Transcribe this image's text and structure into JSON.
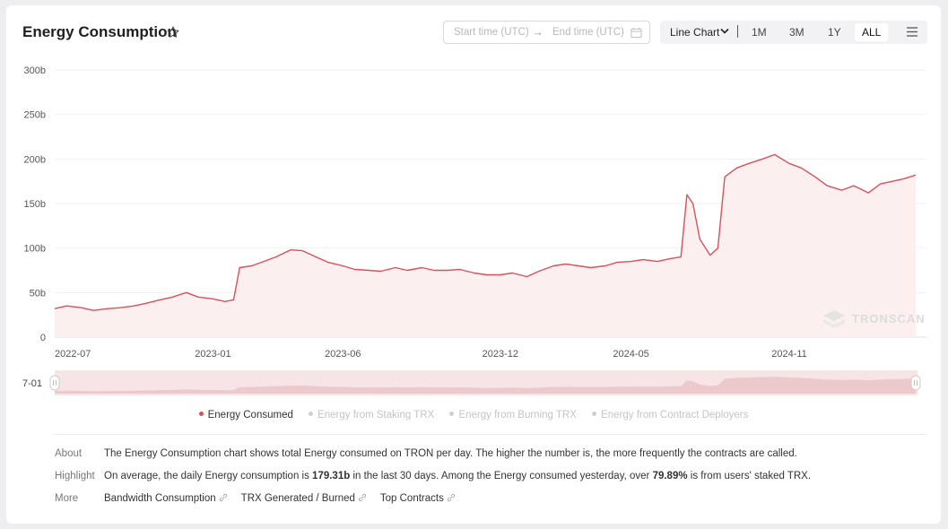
{
  "header": {
    "title": "Energy Consumption",
    "start_placeholder": "Start time (UTC)",
    "end_placeholder": "End time (UTC)",
    "chart_type": "Line Chart",
    "ranges": [
      "1M",
      "3M",
      "1Y",
      "ALL"
    ],
    "active_range": "ALL"
  },
  "watermark": "TRONSCAN",
  "slider_label": "7-01",
  "legend": {
    "items": [
      {
        "name": "Energy Consumed",
        "active": true
      },
      {
        "name": "Energy from Staking TRX",
        "active": false
      },
      {
        "name": "Energy from Burning TRX",
        "active": false
      },
      {
        "name": "Energy from Contract Deployers",
        "active": false
      }
    ]
  },
  "info": {
    "about_label": "About",
    "about_text": "The Energy Consumption chart shows total Energy consumed on TRON per day. The higher the number is, the more frequently the contracts are called.",
    "highlight_label": "Highlight",
    "highlight_pre": "On average, the daily Energy consumption is ",
    "highlight_value1": "179.31b",
    "highlight_mid": " in the last 30 days.  Among the Energy consumed yesterday, over ",
    "highlight_value2": "79.89%",
    "highlight_post": " is from users' staked TRX.",
    "more_label": "More",
    "more_links": [
      "Bandwidth Consumption",
      "TRX Generated / Burned",
      "Top Contracts"
    ]
  },
  "colors": {
    "line": "#d9505a",
    "area": "#fbeff0",
    "accent": "#e0434f"
  },
  "chart_data": {
    "type": "line",
    "title": "Energy Consumption",
    "ylim": [
      0,
      300
    ],
    "y_ticks": [
      0,
      50,
      100,
      150,
      200,
      250,
      300
    ],
    "y_tick_labels": [
      "0",
      "50b",
      "100b",
      "150b",
      "200b",
      "250b",
      "300b"
    ],
    "x_ticks": [
      "2022-07",
      "2023-01",
      "2023-06",
      "2023-12",
      "2024-05",
      "2024-11"
    ],
    "x_ticks_pos": [
      "2022-07-01",
      "2023-01-01",
      "2023-06-01",
      "2023-12-01",
      "2024-05-01",
      "2024-11-01"
    ],
    "x_start": "2022-07-01",
    "x_end": "2025-03-28",
    "grid": true,
    "series": [
      {
        "name": "Energy Consumed",
        "points": [
          [
            "2022-07-01",
            32
          ],
          [
            "2022-07-15",
            35
          ],
          [
            "2022-08-01",
            33
          ],
          [
            "2022-08-15",
            30
          ],
          [
            "2022-09-01",
            32
          ],
          [
            "2022-09-15",
            33
          ],
          [
            "2022-10-01",
            35
          ],
          [
            "2022-10-15",
            38
          ],
          [
            "2022-11-01",
            42
          ],
          [
            "2022-11-15",
            45
          ],
          [
            "2022-12-01",
            50
          ],
          [
            "2022-12-15",
            45
          ],
          [
            "2023-01-01",
            43
          ],
          [
            "2023-01-15",
            40
          ],
          [
            "2023-01-25",
            42
          ],
          [
            "2023-02-01",
            78
          ],
          [
            "2023-02-15",
            80
          ],
          [
            "2023-03-01",
            85
          ],
          [
            "2023-03-15",
            90
          ],
          [
            "2023-04-01",
            98
          ],
          [
            "2023-04-15",
            97
          ],
          [
            "2023-05-01",
            90
          ],
          [
            "2023-05-15",
            84
          ],
          [
            "2023-06-01",
            80
          ],
          [
            "2023-06-15",
            76
          ],
          [
            "2023-07-01",
            75
          ],
          [
            "2023-07-15",
            74
          ],
          [
            "2023-08-01",
            78
          ],
          [
            "2023-08-15",
            75
          ],
          [
            "2023-09-01",
            78
          ],
          [
            "2023-09-15",
            75
          ],
          [
            "2023-10-01",
            75
          ],
          [
            "2023-10-15",
            76
          ],
          [
            "2023-11-01",
            72
          ],
          [
            "2023-11-15",
            70
          ],
          [
            "2023-12-01",
            70
          ],
          [
            "2023-12-15",
            72
          ],
          [
            "2024-01-01",
            68
          ],
          [
            "2024-01-15",
            74
          ],
          [
            "2024-02-01",
            80
          ],
          [
            "2024-02-15",
            82
          ],
          [
            "2024-03-01",
            80
          ],
          [
            "2024-03-15",
            78
          ],
          [
            "2024-04-01",
            80
          ],
          [
            "2024-04-15",
            84
          ],
          [
            "2024-05-01",
            85
          ],
          [
            "2024-05-15",
            87
          ],
          [
            "2024-06-01",
            85
          ],
          [
            "2024-06-15",
            88
          ],
          [
            "2024-06-28",
            90
          ],
          [
            "2024-07-05",
            160
          ],
          [
            "2024-07-12",
            150
          ],
          [
            "2024-07-20",
            110
          ],
          [
            "2024-08-01",
            92
          ],
          [
            "2024-08-10",
            100
          ],
          [
            "2024-08-18",
            180
          ],
          [
            "2024-09-01",
            190
          ],
          [
            "2024-09-15",
            195
          ],
          [
            "2024-10-01",
            200
          ],
          [
            "2024-10-15",
            205
          ],
          [
            "2024-11-01",
            195
          ],
          [
            "2024-11-15",
            190
          ],
          [
            "2024-12-01",
            180
          ],
          [
            "2024-12-15",
            170
          ],
          [
            "2025-01-01",
            165
          ],
          [
            "2025-01-15",
            170
          ],
          [
            "2025-02-01",
            162
          ],
          [
            "2025-02-15",
            172
          ],
          [
            "2025-03-01",
            175
          ],
          [
            "2025-03-15",
            178
          ],
          [
            "2025-03-28",
            182
          ]
        ]
      }
    ]
  }
}
